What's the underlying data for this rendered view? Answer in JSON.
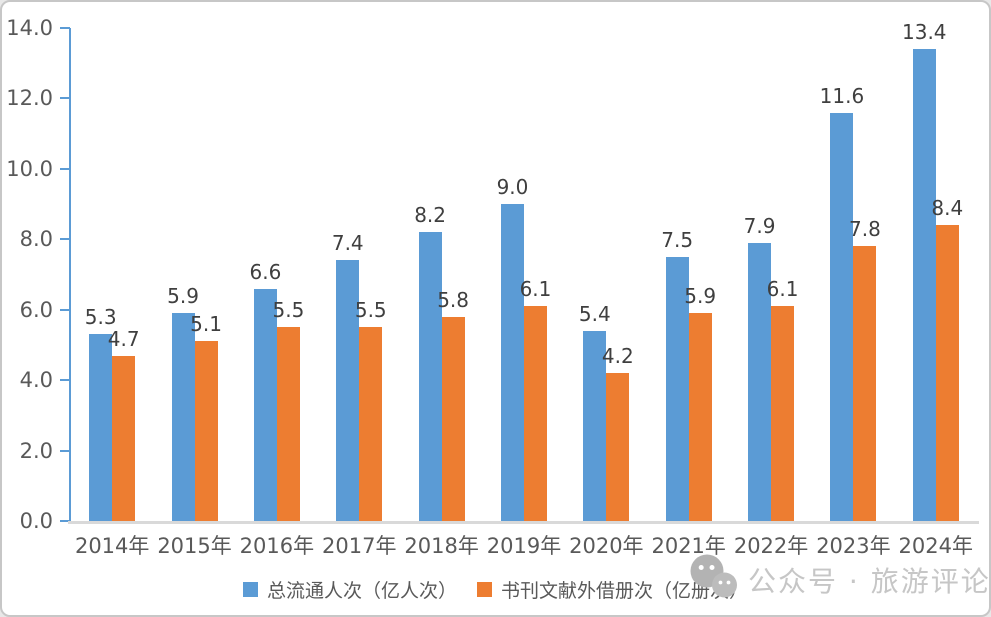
{
  "chart_data": {
    "type": "bar",
    "title": "",
    "categories": [
      "2014年",
      "2015年",
      "2016年",
      "2017年",
      "2018年",
      "2019年",
      "2020年",
      "2021年",
      "2022年",
      "2023年",
      "2024年"
    ],
    "series": [
      {
        "name": "总流通人次（亿人次）",
        "color": "#5B9BD5",
        "values": [
          5.3,
          5.9,
          6.6,
          7.4,
          8.2,
          9.0,
          5.4,
          7.5,
          7.9,
          11.6,
          13.4
        ]
      },
      {
        "name": "书刊文献外借册次（亿册次）",
        "color": "#ED7D31",
        "values": [
          4.7,
          5.1,
          5.5,
          5.5,
          5.8,
          6.1,
          4.2,
          5.9,
          6.1,
          7.8,
          8.4
        ]
      }
    ],
    "xlabel": "",
    "ylabel": "",
    "ylim": [
      0,
      14
    ],
    "ytick_step": 2,
    "ytick_labels": [
      "0.0",
      "2.0",
      "4.0",
      "6.0",
      "8.0",
      "10.0",
      "12.0",
      "14.0"
    ],
    "grid": false,
    "data_labels": true,
    "data_label_decimals": 1,
    "legend_position": "bottom",
    "axis_color": "#5B9BD5",
    "baseline_color": "#D9D9D9"
  },
  "watermark": {
    "icon": "wechat-icon",
    "text": "公众号 · 旅游评论"
  }
}
